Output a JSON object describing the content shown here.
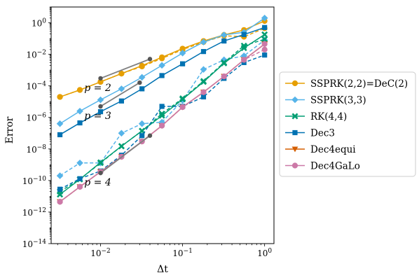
{
  "chart_data": {
    "type": "line",
    "xscale": "log",
    "yscale": "log",
    "xlim": [
      0.0025,
      1.3
    ],
    "ylim": [
      1e-14,
      10
    ],
    "xlabel": "Δt",
    "ylabel": "Error",
    "grid": false,
    "legend_position": "right-outside",
    "x": [
      0.0032,
      0.0056,
      0.01,
      0.018,
      0.032,
      0.056,
      0.1,
      0.18,
      0.32,
      0.56,
      1.0
    ],
    "xticks": [
      {
        "value": 0.01,
        "base": "10",
        "exp": "−2"
      },
      {
        "value": 0.1,
        "base": "10",
        "exp": "−1"
      },
      {
        "value": 1.0,
        "base": "10",
        "exp": "0"
      }
    ],
    "yticks": [
      {
        "value": 1,
        "base": "10",
        "exp": "0"
      },
      {
        "value": 0.01,
        "base": "10",
        "exp": "−2"
      },
      {
        "value": 0.0001,
        "base": "10",
        "exp": "−4"
      },
      {
        "value": 1e-06,
        "base": "10",
        "exp": "−6"
      },
      {
        "value": 1e-08,
        "base": "10",
        "exp": "−8"
      },
      {
        "value": 1e-10,
        "base": "10",
        "exp": "−10"
      },
      {
        "value": 1e-12,
        "base": "10",
        "exp": "−12"
      },
      {
        "value": 1e-14,
        "base": "10",
        "exp": "−14"
      }
    ],
    "series": [
      {
        "name": "SSPRK(2,2)=DeC(2)",
        "color": "#E69F00",
        "marker": "circle",
        "solid": [
          2e-05,
          5.5e-05,
          0.00018,
          0.0006,
          0.0019,
          0.0065,
          0.023,
          0.07,
          0.17,
          0.35,
          1.3
        ],
        "dashed": [
          2e-05,
          5.5e-05,
          0.00018,
          0.0006,
          0.0017,
          0.0055,
          0.02,
          0.06,
          0.15,
          0.13,
          0.45
        ]
      },
      {
        "name": "SSPRK(3,3)",
        "color": "#56B4E9",
        "marker": "diamond",
        "solid": [
          4e-07,
          2.5e-06,
          1.3e-05,
          6.5e-05,
          0.00035,
          0.002,
          0.012,
          0.06,
          0.17,
          0.25,
          2.0
        ],
        "dashed": [
          2e-10,
          1.3e-09,
          1.3e-09,
          1e-07,
          4e-07,
          5e-07,
          1.2e-05,
          0.0011,
          0.0045,
          0.008,
          0.08
        ]
      },
      {
        "name": "RK(4,4)",
        "color": "#009E73",
        "marker": "x",
        "solid": [
          1.3e-11,
          1.2e-10,
          1.4e-09,
          1.5e-08,
          1.4e-07,
          1.3e-06,
          1.4e-05,
          0.00018,
          0.0027,
          0.025,
          0.18
        ],
        "dashed": [
          2e-11,
          1.2e-10,
          1.3e-09,
          1.5e-08,
          1.4e-07,
          1.7e-06,
          1.6e-05,
          0.0002,
          0.003,
          0.035,
          0.09
        ]
      },
      {
        "name": "Dec3",
        "color": "#0072B2",
        "marker": "square",
        "solid": [
          8e-08,
          4.5e-07,
          2.3e-06,
          1.1e-05,
          6.5e-05,
          0.00045,
          0.0025,
          0.015,
          0.07,
          0.18,
          0.5
        ],
        "dashed": [
          2.8e-11,
          1.3e-10,
          4e-10,
          4e-09,
          7e-08,
          5e-06,
          5e-06,
          2e-05,
          0.0003,
          0.003,
          0.009
        ]
      },
      {
        "name": "Dec4equi",
        "color": "#D55E00",
        "marker": "triangle-down",
        "solid": [
          4.5e-12,
          4e-11,
          3.6e-10,
          3.2e-09,
          3e-08,
          3e-07,
          4.5e-06,
          4e-05,
          0.0004,
          0.0045,
          0.045
        ],
        "dashed": [
          4.5e-12,
          4e-11,
          3.6e-10,
          3.2e-09,
          3e-08,
          3e-07,
          4.5e-06,
          4e-05,
          0.0004,
          0.0045,
          0.045
        ]
      },
      {
        "name": "Dec4GaLo",
        "color": "#CC79A7",
        "marker": "circle",
        "solid": [
          4.5e-12,
          4e-11,
          3.6e-10,
          3.2e-09,
          3e-08,
          3e-07,
          4.5e-06,
          4e-05,
          0.0004,
          0.0045,
          0.045
        ],
        "dashed": [
          4.5e-12,
          4e-11,
          3.6e-10,
          3.2e-09,
          3e-08,
          3e-07,
          4.5e-06,
          4e-05,
          0.0004,
          0.0045,
          0.02
        ]
      }
    ],
    "reference_lines": [
      {
        "label": "p = 2",
        "points": [
          [
            0.01,
            0.0003
          ],
          [
            0.04,
            0.005
          ]
        ],
        "color": "#808080"
      },
      {
        "label": "p = 3",
        "points": [
          [
            0.01,
            5e-06
          ],
          [
            0.03,
            0.00016
          ]
        ],
        "color": "#808080"
      },
      {
        "label": "p = 4",
        "points": [
          [
            0.01,
            3e-10
          ],
          [
            0.04,
            7e-08
          ]
        ],
        "color": "#808080"
      }
    ]
  }
}
